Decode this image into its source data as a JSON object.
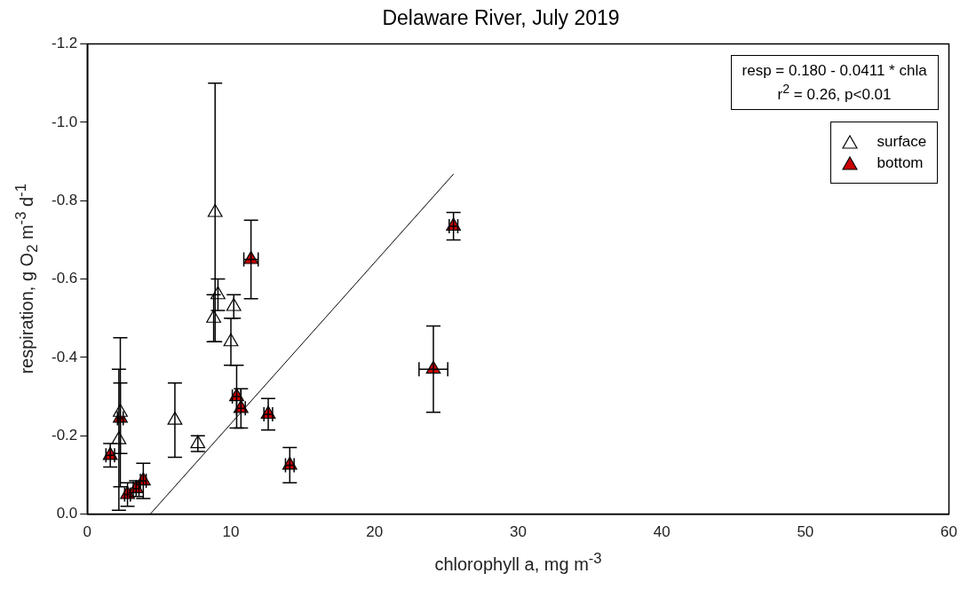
{
  "chart_data": {
    "type": "scatter",
    "title": "Delaware River, July 2019",
    "xlabel": "chlorophyll a, mg m$^{-3}$",
    "ylabel": "respiration, g O$_{2}$ m$^{-3}$ d$^{-1}$",
    "annotations": [
      "resp = 0.180 - 0.0411 * chla",
      "r$^{2}$ = 0.26, p<0.01"
    ],
    "xlim": [
      0,
      60
    ],
    "xticks": [
      0,
      10,
      20,
      30,
      40,
      50,
      60
    ],
    "ylim": [
      0,
      -1.2
    ],
    "yticks": [
      {
        "value": 0,
        "label": "0.0"
      },
      -0.2,
      -0.4,
      -0.6,
      -0.8,
      {
        "value": -1,
        "label": "-1.0"
      },
      -1.2
    ],
    "legend": "top right",
    "grid": false,
    "series": [
      {
        "name": "surface",
        "color": "#ffffff",
        "marker": "triangle",
        "x": [
          8.9,
          9.1,
          8.8,
          10.2,
          10.0,
          2.3,
          2.2,
          6.1,
          7.7
        ],
        "values": [
          -0.77,
          -0.56,
          -0.5,
          -0.53,
          -0.44,
          -0.26,
          -0.19,
          -0.24,
          -0.18
        ],
        "errors": [
          0.33,
          0.04,
          0.06,
          0.03,
          0.06,
          0.19,
          0.18,
          0.095,
          0.02
        ]
      },
      {
        "name": "bottom",
        "color": "#cc0000",
        "marker": "triangle",
        "x": [
          11.4,
          25.5,
          24.1,
          10.4,
          10.7,
          12.6,
          14.1,
          2.3,
          1.6,
          2.8,
          3.4,
          3.9
        ],
        "values": [
          -0.65,
          -0.735,
          -0.37,
          -0.3,
          -0.27,
          -0.255,
          -0.125,
          -0.245,
          -0.15,
          -0.05,
          -0.065,
          -0.085
        ],
        "errors": [
          0.1,
          0.035,
          0.11,
          0.08,
          0.05,
          0.04,
          0.045,
          0.09,
          0.03,
          0.03,
          0.02,
          0.045
        ],
        "xerrors": [
          0.5,
          0.3,
          1,
          0.3,
          0.3,
          0.3,
          0.3,
          0.2,
          0.3,
          0.2,
          0.2,
          0.2
        ]
      },
      {
        "type": "line",
        "color": "#000000",
        "marker": "none",
        "x": [
          4.38,
          25.5
        ],
        "values": [
          0,
          -0.868
        ]
      }
    ]
  }
}
